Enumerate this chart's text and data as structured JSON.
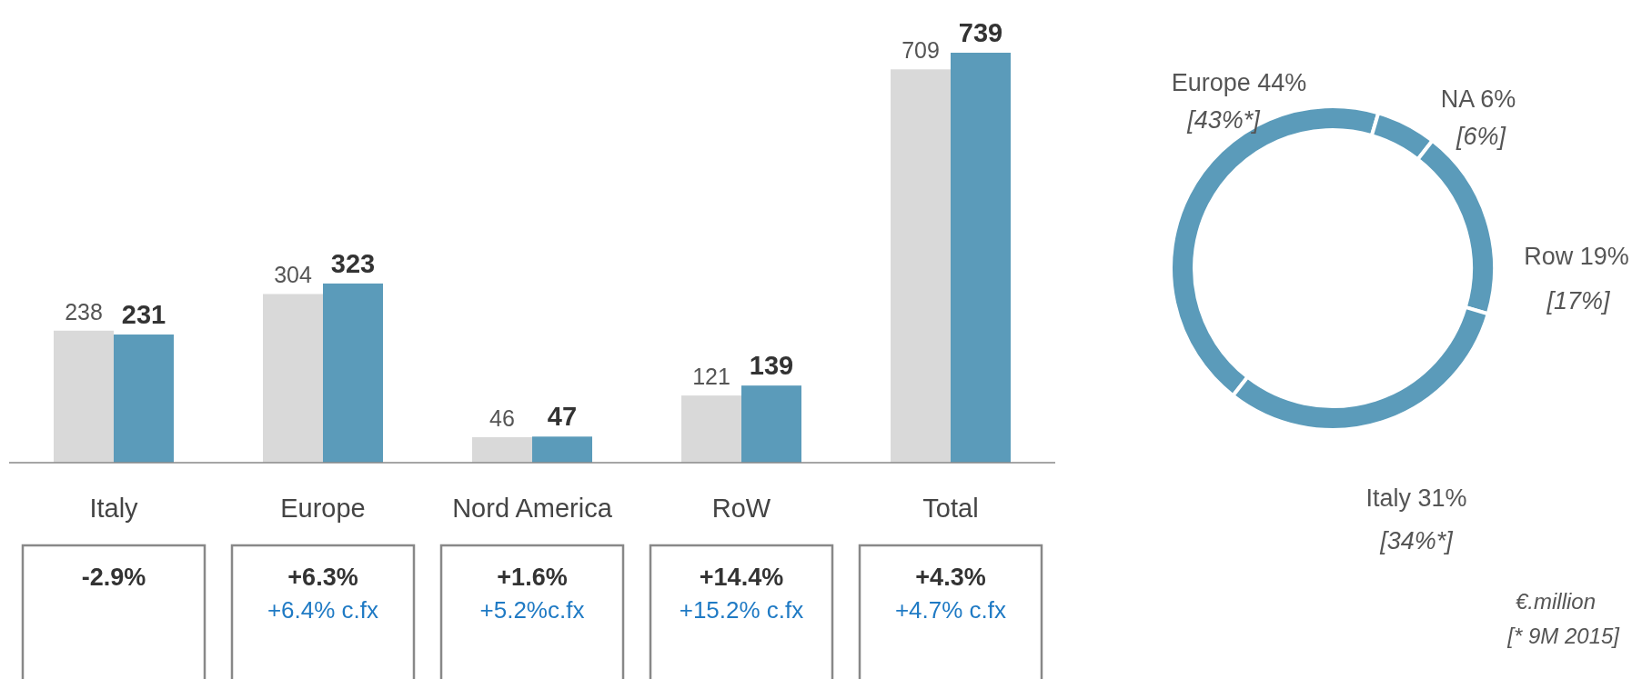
{
  "chart_data": [
    {
      "type": "bar",
      "categories": [
        "Italy",
        "Europe",
        "Nord America",
        "RoW",
        "Total"
      ],
      "series": [
        {
          "color": "#d9d9d9",
          "values": [
            238,
            304,
            46,
            121,
            709
          ]
        },
        {
          "color": "#5b9bba",
          "values": [
            231,
            323,
            47,
            139,
            739
          ]
        }
      ],
      "data_labels": true,
      "annotations": [
        "-2.9%",
        "+6.3%",
        "+6.4% c.fx",
        "+1.6%",
        "+5.2%c.fx",
        "+14.4%",
        "+15.2% c.fx",
        "+4.3%",
        "+4.7% c.fx"
      ]
    },
    {
      "type": "donut",
      "categories": [
        "Europe",
        "NA",
        "Row",
        "Italy"
      ],
      "values": [
        44,
        6,
        19,
        31
      ],
      "colors": [
        "#5b9bba",
        "#5b9bba",
        "#5b9bba",
        "#5b9bba"
      ],
      "value_labels": [
        "44%",
        "6%",
        "19%",
        "31%"
      ],
      "annotations": [
        "[43%*]",
        "[6%]",
        "[17%]",
        "[34%*]",
        "€.million",
        "[* 9M 2015]"
      ]
    }
  ]
}
